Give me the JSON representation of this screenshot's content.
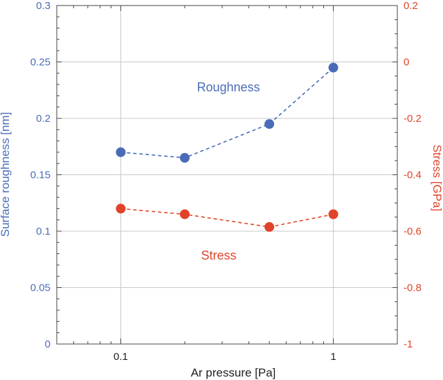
{
  "chart_data": {
    "type": "line",
    "x": [
      0.1,
      0.2,
      0.5,
      1
    ],
    "x_scale": "log",
    "xlim": [
      0.05,
      2
    ],
    "xlabel": "Ar pressure [Pa]",
    "x_ticks": [
      "0.1",
      "1"
    ],
    "grid": true,
    "series": [
      {
        "name": "Roughness",
        "axis": "left",
        "color": "#4a6cb7",
        "values": [
          0.17,
          0.165,
          0.195,
          0.245
        ]
      },
      {
        "name": "Stress",
        "axis": "right",
        "color": "#e0432a",
        "values": [
          -0.52,
          -0.54,
          -0.585,
          -0.54
        ]
      }
    ],
    "left_axis": {
      "label": "Surface roughness [nm]",
      "ylim": [
        0,
        0.3
      ],
      "ticks": [
        "0",
        "0.05",
        "0.1",
        "0.15",
        "0.2",
        "0.25",
        "0.3"
      ]
    },
    "right_axis": {
      "label": "Stress [GPa]",
      "ylim": [
        -1,
        0.2
      ],
      "ticks": [
        "-1",
        "-0.8",
        "-0.6",
        "-0.4",
        "-0.2",
        "0",
        "0.2"
      ]
    }
  }
}
